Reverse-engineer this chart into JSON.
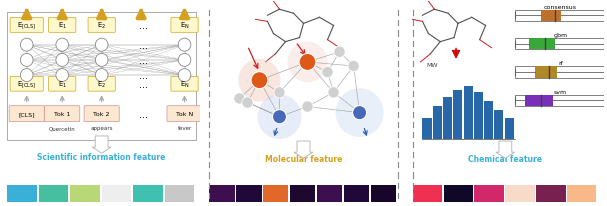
{
  "sections": [
    "Scientific information feature",
    "Molecular feature",
    "Chemical feature"
  ],
  "section_colors": [
    "#3ab0d8",
    "#d4a020",
    "#3ab0d8"
  ],
  "sci_colors": [
    "#3ab0d8",
    "#45bfa0",
    "#b8d878",
    "#eeeeee",
    "#40c0b0",
    "#c8c8c8"
  ],
  "mol_colors": [
    "#3d0e50",
    "#200838",
    "#e06828",
    "#1e0830",
    "#3d0e50",
    "#200838",
    "#180628"
  ],
  "chem_colors": [
    "#f03050",
    "#100828",
    "#d02868",
    "#f8dac8",
    "#782050",
    "#f8b888"
  ],
  "arrow_gold": "#d4a020",
  "embed_box_color": "#fff8cc",
  "token_box_color": "#fce8d0",
  "node_orange": "#e05818",
  "node_blue": "#4868b8",
  "bar_color": "#2868a8",
  "dashed_color": "#aaaaaa"
}
